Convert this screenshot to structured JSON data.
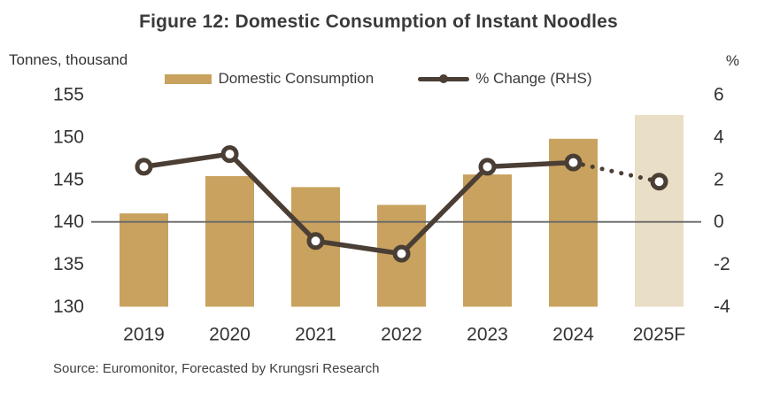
{
  "source_note": "Source: Euromonitor, Forecasted by Krungsri Research",
  "colors": {
    "bar": "#C8A25E",
    "bar_forecast": "#E9DEC6",
    "line": "#4A3E35",
    "zero_line": "#666666",
    "title_text": "#3A3A3A",
    "tick_text": "#333333"
  },
  "chart_data": {
    "type": "combo-bar-line",
    "title": "Figure 12: Domestic Consumption of Instant Noodles",
    "categories": [
      "2019",
      "2020",
      "2021",
      "2022",
      "2023",
      "2024",
      "2025F"
    ],
    "series": [
      {
        "name": "Domestic Consumption",
        "type": "bar",
        "axis": "left",
        "values": [
          141.0,
          145.4,
          144.1,
          142.0,
          145.6,
          149.8,
          152.6
        ],
        "forecast_last": true
      },
      {
        "name": "% Change (RHS)",
        "type": "line",
        "axis": "right",
        "values": [
          2.6,
          3.2,
          -0.9,
          -1.5,
          2.6,
          2.8,
          1.9
        ],
        "dotted_last_segment": true
      }
    ],
    "left_axis": {
      "label": "Tonnes, thousand",
      "min": 130,
      "max": 155,
      "ticks": [
        155,
        150,
        145,
        140,
        135,
        130
      ]
    },
    "right_axis": {
      "label": "%",
      "min": -4,
      "max": 6,
      "ticks": [
        6,
        4,
        2,
        0,
        -2,
        -4
      ]
    },
    "zero_line": true,
    "grid": false,
    "legend_position": "top"
  }
}
